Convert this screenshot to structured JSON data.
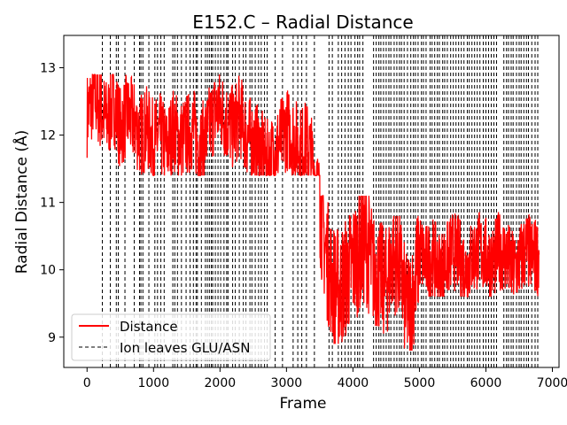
{
  "chart_data": {
    "type": "line",
    "title": "E152.C – Radial Distance",
    "xlabel": "Frame",
    "ylabel": "Radial Distance (Å)",
    "xlim": [
      -350,
      7100
    ],
    "ylim": [
      8.55,
      13.48
    ],
    "xticks": [
      0,
      1000,
      2000,
      3000,
      4000,
      5000,
      6000,
      7000
    ],
    "yticks": [
      9,
      10,
      11,
      12,
      13
    ],
    "grid": false,
    "legend_position": "lower-left",
    "legend": [
      "Distance",
      "Ion leaves GLU/ASN"
    ],
    "series": [
      {
        "name": "Distance",
        "color": "#ff0000",
        "x": [
          0,
          100,
          200,
          300,
          400,
          500,
          600,
          700,
          800,
          900,
          1000,
          1100,
          1200,
          1300,
          1400,
          1500,
          1600,
          1700,
          1800,
          1900,
          2000,
          2100,
          2200,
          2300,
          2400,
          2500,
          2600,
          2700,
          2800,
          2900,
          3000,
          3100,
          3200,
          3300,
          3400,
          3500,
          3600,
          3700,
          3800,
          3900,
          4000,
          4100,
          4200,
          4300,
          4400,
          4500,
          4600,
          4700,
          4800,
          4900,
          5000,
          5100,
          5200,
          5300,
          5400,
          5500,
          5600,
          5700,
          5800,
          5900,
          6000,
          6100,
          6200,
          6300,
          6400,
          6500,
          6600,
          6700,
          6800
        ],
        "y": [
          12.3,
          12.6,
          12.4,
          12.2,
          12.5,
          12.1,
          12.3,
          12.2,
          12.0,
          12.1,
          11.9,
          12.0,
          11.8,
          12.1,
          11.9,
          12.0,
          12.1,
          11.8,
          12.0,
          12.3,
          12.4,
          12.2,
          12.1,
          12.3,
          12.0,
          11.9,
          11.8,
          11.6,
          11.7,
          11.9,
          12.1,
          12.0,
          11.8,
          11.9,
          11.6,
          11.0,
          10.2,
          9.8,
          9.7,
          9.9,
          10.1,
          10.3,
          10.4,
          10.0,
          9.9,
          9.8,
          10.2,
          10.1,
          9.4,
          9.6,
          10.3,
          10.1,
          10.2,
          10.0,
          10.1,
          10.3,
          10.2,
          10.0,
          10.2,
          10.3,
          10.2,
          10.1,
          10.3,
          10.2,
          10.0,
          10.1,
          10.3,
          10.2,
          10.2
        ]
      }
    ],
    "band_ranges": [
      {
        "x0": 0,
        "x1": 3500,
        "y_low": 11.4,
        "y_high": 12.9
      },
      {
        "x0": 3500,
        "x1": 4300,
        "y_low": 8.9,
        "y_high": 11.1
      },
      {
        "x0": 4300,
        "x1": 5000,
        "y_low": 8.8,
        "y_high": 10.8
      },
      {
        "x0": 5000,
        "x1": 6800,
        "y_low": 9.6,
        "y_high": 11.0
      }
    ],
    "ion_leave_frames": [
      230,
      350,
      440,
      470,
      570,
      710,
      790,
      810,
      840,
      930,
      1020,
      1060,
      1110,
      1160,
      1290,
      1320,
      1360,
      1420,
      1490,
      1550,
      1600,
      1640,
      1660,
      1720,
      1780,
      1810,
      1840,
      1870,
      1890,
      1930,
      1970,
      2010,
      2060,
      2100,
      2120,
      2190,
      2230,
      2290,
      2350,
      2390,
      2450,
      2480,
      2530,
      2580,
      2620,
      2670,
      2710,
      2830,
      2940,
      3100,
      3170,
      3230,
      3300,
      3420,
      3640,
      3690,
      3780,
      3830,
      3880,
      3930,
      3970,
      4030,
      4070,
      4100,
      4150,
      4310,
      4350,
      4390,
      4420,
      4460,
      4500,
      4540,
      4570,
      4620,
      4660,
      4700,
      4730,
      4770,
      4820,
      4870,
      4910,
      4940,
      4980,
      5030,
      5060,
      5100,
      5160,
      5190,
      5230,
      5270,
      5300,
      5350,
      5380,
      5420,
      5470,
      5510,
      5550,
      5590,
      5630,
      5670,
      5720,
      5750,
      5790,
      5830,
      5870,
      5910,
      5960,
      6000,
      6040,
      6080,
      6120,
      6160,
      6270,
      6310,
      6340,
      6380,
      6410,
      6460,
      6500,
      6530,
      6570,
      6610,
      6640,
      6690,
      6740,
      6780
    ]
  }
}
